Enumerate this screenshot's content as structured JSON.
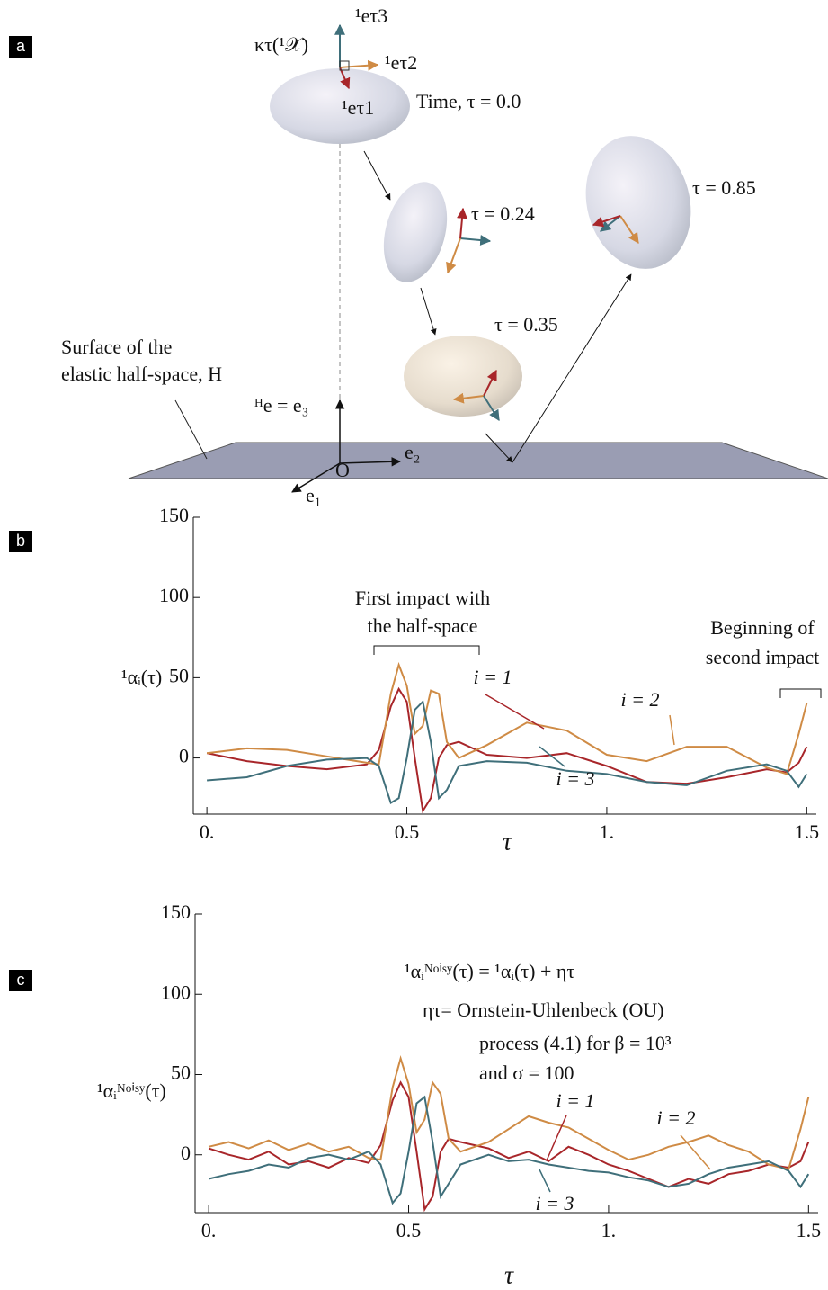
{
  "diagram": {
    "panel": "a",
    "labels": [
      "¹eτ3",
      "κτ(¹𝒳)",
      "¹eτ2",
      "¹eτ1",
      "Time, τ = 0.0",
      "τ = 0.24",
      "τ = 0.85",
      "τ = 0.35",
      "Surface of the",
      "elastic half-space, H",
      "ᴴe = e₃",
      "e₂",
      "O",
      "e₁"
    ]
  },
  "chart_data": [
    {
      "type": "line",
      "panel": "b",
      "ylabel": "¹αᵢ(τ)",
      "xlabel": "τ",
      "x": [
        0,
        0.1,
        0.2,
        0.3,
        0.4,
        0.43,
        0.46,
        0.48,
        0.5,
        0.52,
        0.54,
        0.56,
        0.58,
        0.6,
        0.63,
        0.7,
        0.8,
        0.9,
        1.0,
        1.1,
        1.2,
        1.3,
        1.4,
        1.45,
        1.48,
        1.5
      ],
      "series": [
        {
          "name": "i = 1",
          "color": "#a8262a",
          "values": [
            3,
            -2,
            -5,
            -7,
            -4,
            5,
            32,
            43,
            35,
            0,
            -33,
            -25,
            0,
            8,
            10,
            2,
            0,
            3,
            -5,
            -15,
            -16,
            -12,
            -7,
            -9,
            -3,
            7
          ]
        },
        {
          "name": "i = 2",
          "color": "#cf8b45",
          "values": [
            3,
            6,
            5,
            1,
            -3,
            -4,
            40,
            58,
            45,
            15,
            20,
            42,
            40,
            10,
            0,
            8,
            22,
            17,
            2,
            -2,
            7,
            7,
            -6,
            -10,
            15,
            34
          ]
        },
        {
          "name": "i = 3",
          "color": "#3f6f7a",
          "values": [
            -14,
            -12,
            -5,
            -1,
            0,
            -5,
            -28,
            -25,
            0,
            30,
            35,
            10,
            -25,
            -20,
            -5,
            -2,
            -3,
            -8,
            -10,
            -15,
            -17,
            -8,
            -4,
            -8,
            -18,
            -10
          ]
        }
      ],
      "xlim": [
        -0.034,
        1.524
      ],
      "ylim": [
        -35,
        150
      ],
      "xticks": [
        {
          "value": 0,
          "label": "0."
        },
        0.5,
        {
          "value": 1,
          "label": "1."
        },
        1.5
      ],
      "yticks": [
        0,
        50,
        100,
        150
      ],
      "annotations": [
        "First impact with",
        "the half-space",
        "Beginning of",
        "second impact"
      ]
    },
    {
      "type": "line",
      "panel": "c",
      "ylabel": "¹αᵢᴺᵒⁱˢʸ(τ)",
      "xlabel": "τ",
      "x": [
        0,
        0.05,
        0.1,
        0.15,
        0.2,
        0.25,
        0.3,
        0.35,
        0.4,
        0.43,
        0.46,
        0.48,
        0.5,
        0.52,
        0.54,
        0.56,
        0.58,
        0.6,
        0.63,
        0.7,
        0.75,
        0.8,
        0.85,
        0.9,
        0.95,
        1.0,
        1.05,
        1.1,
        1.15,
        1.2,
        1.25,
        1.3,
        1.35,
        1.4,
        1.45,
        1.48,
        1.5
      ],
      "series": [
        {
          "name": "i = 1",
          "color": "#a8262a",
          "values": [
            4,
            0,
            -3,
            2,
            -6,
            -4,
            -8,
            -2,
            -5,
            6,
            34,
            45,
            36,
            2,
            -34,
            -26,
            2,
            10,
            8,
            4,
            -2,
            2,
            -4,
            5,
            0,
            -6,
            -10,
            -15,
            -20,
            -15,
            -18,
            -12,
            -10,
            -6,
            -8,
            -4,
            8
          ]
        },
        {
          "name": "i = 2",
          "color": "#cf8b45",
          "values": [
            5,
            8,
            4,
            9,
            3,
            7,
            2,
            5,
            -2,
            -3,
            42,
            60,
            44,
            14,
            22,
            45,
            38,
            10,
            2,
            8,
            16,
            24,
            20,
            17,
            10,
            3,
            -3,
            0,
            5,
            8,
            12,
            6,
            2,
            -6,
            -9,
            16,
            36
          ]
        },
        {
          "name": "i = 3",
          "color": "#3f6f7a",
          "values": [
            -15,
            -12,
            -10,
            -6,
            -8,
            -2,
            0,
            -3,
            2,
            -6,
            -30,
            -24,
            2,
            32,
            36,
            8,
            -26,
            -18,
            -6,
            0,
            -4,
            -3,
            -6,
            -8,
            -10,
            -11,
            -14,
            -16,
            -20,
            -18,
            -12,
            -8,
            -6,
            -4,
            -10,
            -20,
            -12
          ]
        }
      ],
      "xlim": [
        -0.034,
        1.524
      ],
      "ylim": [
        -36,
        150
      ],
      "xticks": [
        {
          "value": 0,
          "label": "0."
        },
        0.5,
        {
          "value": 1,
          "label": "1."
        },
        1.5
      ],
      "yticks": [
        0,
        50,
        100,
        150
      ],
      "annotations": [
        "¹αᵢᴺᵒⁱˢʸ(τ) = ¹αᵢ(τ) + ητ",
        "ητ= Ornstein-Uhlenbeck (OU)",
        "process (4.1) for β = 10³",
        "and σ = 100"
      ]
    }
  ]
}
